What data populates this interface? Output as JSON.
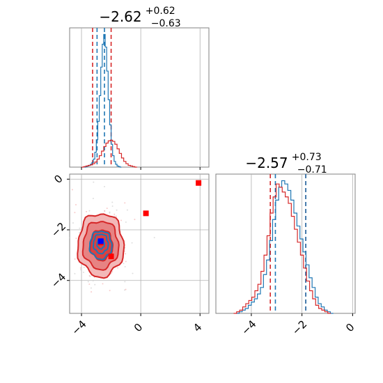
{
  "chart_data": {
    "type": "corner",
    "description_free": true,
    "panels": {
      "hist_top": {
        "title": {
          "median": "−2.62",
          "upper": "+0.62",
          "lower": "−0.63"
        },
        "xlim": [
          -4.8,
          4.6
        ],
        "xticks": [
          -4,
          0,
          4
        ],
        "grid": true,
        "quantile_lines": [
          {
            "color": "#d62728",
            "x": [
              -3.25,
              -2.0
            ]
          },
          {
            "color": "#1f77b4",
            "x": [
              -2.95,
              -2.45
            ]
          }
        ],
        "series": [
          {
            "color": "#1f77b4",
            "bin_start": -3.8,
            "bin_width": 0.1,
            "counts": [
              0,
              1,
              2,
              3,
              5,
              8,
              14,
              26,
              48,
              80,
              125,
              175,
              215,
              232,
              210,
              168,
              118,
              74,
              40,
              20,
              10,
              5,
              2,
              1,
              0
            ]
          },
          {
            "color": "#d62728",
            "bin_start": -4.0,
            "bin_width": 0.15,
            "counts": [
              0,
              1,
              2,
              3,
              4,
              6,
              9,
              14,
              20,
              28,
              36,
              42,
              46,
              47,
              45,
              40,
              32,
              24,
              16,
              10,
              6,
              3,
              2,
              1,
              0
            ]
          }
        ]
      },
      "scatter": {
        "xlim": [
          -4.8,
          4.6
        ],
        "ylim": [
          -5.3,
          0.2
        ],
        "xticks": [
          -4,
          0,
          4
        ],
        "yticks": [
          0,
          -2,
          -4
        ],
        "grid": true,
        "contours_red": [
          {
            "cx": -2.7,
            "cy": -2.6,
            "rx": 1.55,
            "ry": 1.25
          },
          {
            "cx": -2.7,
            "cy": -2.6,
            "rx": 1.2,
            "ry": 0.95
          },
          {
            "cx": -2.65,
            "cy": -2.6,
            "rx": 0.75,
            "ry": 0.6
          }
        ],
        "contours_blue": [
          {
            "cx": -2.7,
            "cy": -2.6,
            "rx": 0.75,
            "ry": 0.55
          },
          {
            "cx": -2.7,
            "cy": -2.55,
            "rx": 0.5,
            "ry": 0.38
          },
          {
            "cx": -2.7,
            "cy": -2.55,
            "rx": 0.25,
            "ry": 0.2
          }
        ],
        "markers": [
          {
            "color": "#ff0000",
            "x": 0.35,
            "y": -1.35
          },
          {
            "color": "#ff0000",
            "x": 3.9,
            "y": -0.15
          },
          {
            "color": "#ff0000",
            "x": -2.0,
            "y": -3.05
          },
          {
            "color": "#ff0000",
            "x": -2.7,
            "y": -2.5
          },
          {
            "color": "#0000ff",
            "x": -2.7,
            "y": -2.45
          }
        ]
      },
      "hist_right": {
        "title": {
          "median": "−2.57",
          "upper": "+0.73",
          "lower": "−0.71"
        },
        "xlim": [
          -5.4,
          0.1
        ],
        "xticks": [
          -4,
          -2,
          0
        ],
        "grid": true,
        "quantile_lines": [
          {
            "color": "#d62728",
            "x": [
              -3.25,
              -1.85
            ]
          },
          {
            "color": "#1f77b4",
            "x": [
              -3.05,
              -1.85
            ]
          }
        ],
        "series": [
          {
            "color": "#1f77b4",
            "bin_start": -4.6,
            "bin_width": 0.12,
            "counts": [
              0,
              1,
              2,
              3,
              5,
              7,
              9,
              12,
              16,
              24,
              33,
              45,
              58,
              70,
              78,
              82,
              80,
              76,
              70,
              62,
              54,
              46,
              38,
              30,
              22,
              16,
              10,
              6,
              4,
              2,
              1,
              0
            ]
          },
          {
            "color": "#d62728",
            "bin_start": -4.7,
            "bin_width": 0.12,
            "counts": [
              0,
              1,
              2,
              4,
              6,
              8,
              10,
              14,
              18,
              26,
              36,
              48,
              62,
              72,
              80,
              78,
              75,
              72,
              68,
              60,
              52,
              44,
              36,
              28,
              20,
              14,
              9,
              5,
              3,
              2,
              1,
              0
            ]
          }
        ]
      }
    }
  }
}
